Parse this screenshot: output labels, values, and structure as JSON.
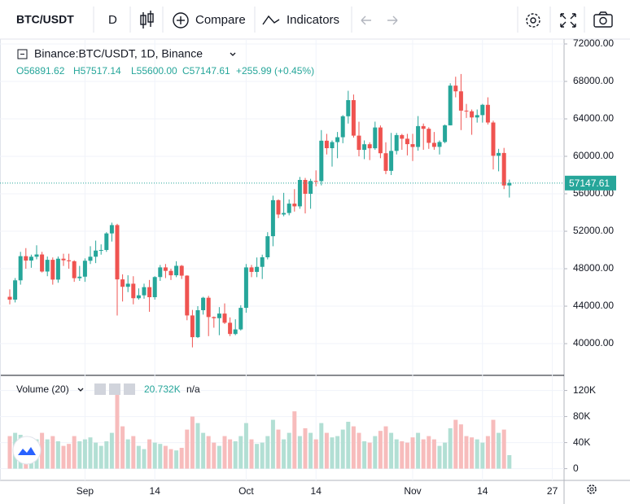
{
  "toolbar": {
    "symbol": "BTC/USDT",
    "interval": "D",
    "compare": "Compare",
    "indicators": "Indicators"
  },
  "legend": {
    "title": "Binance:BTC/USDT, 1D, Binance",
    "values": [
      "O56891.62",
      "H57517.14",
      "L55600.00",
      "C57147.61",
      "+255.99 (+0.45%)"
    ]
  },
  "volume_legend": {
    "title": "Volume (20)",
    "value": "20.732K",
    "extra": "n/a"
  },
  "chart_data": [
    {
      "type": "candlestick",
      "categories": [
        null,
        null,
        null,
        null,
        null,
        null,
        null,
        null,
        null,
        null,
        null,
        null,
        null,
        null,
        "Sep",
        null,
        null,
        null,
        null,
        null,
        null,
        null,
        null,
        null,
        null,
        null,
        null,
        "14",
        null,
        null,
        null,
        null,
        null,
        null,
        null,
        null,
        null,
        null,
        null,
        null,
        null,
        null,
        null,
        null,
        "Oct",
        null,
        null,
        null,
        null,
        null,
        null,
        null,
        null,
        null,
        null,
        null,
        null,
        "14",
        null,
        null,
        null,
        null,
        null,
        null,
        null,
        null,
        null,
        null,
        null,
        null,
        null,
        null,
        null,
        null,
        null,
        "Nov",
        null,
        null,
        null,
        null,
        null,
        null,
        null,
        null,
        null,
        null,
        null,
        null,
        "14",
        null,
        null,
        null,
        null,
        null,
        null,
        null,
        null,
        null,
        null,
        null,
        null,
        "27",
        null,
        null
      ],
      "open": [
        45000,
        44700,
        46760,
        49340,
        48870,
        49280,
        49520,
        47700,
        48950,
        46840,
        49070,
        48900,
        48800,
        46990,
        47150,
        48850,
        49280,
        49940,
        50000,
        51770,
        52660,
        46860,
        46070,
        46400,
        44850,
        45160,
        46030,
        44960,
        47110,
        48140,
        47770,
        47300,
        48310,
        47260,
        43010,
        40690,
        43570,
        44900,
        42840,
        42720,
        43210,
        42230,
        41030,
        41520,
        43820,
        48140,
        47660,
        48200,
        49220,
        51470,
        55320,
        53790,
        53950,
        54950,
        54660,
        57480,
        56000,
        57370,
        57350,
        61670,
        60870,
        61520,
        62040,
        64280,
        66000,
        62210,
        60690,
        61290,
        60860,
        63080,
        60330,
        58450,
        60580,
        62270,
        61880,
        61300,
        61000,
        63230,
        62940,
        61440,
        61010,
        61530,
        63310,
        67550,
        66940,
        64880,
        64810,
        64150,
        64400,
        65500,
        63610,
        60060,
        60360,
        56891.62,
        null,
        null,
        null,
        null,
        null,
        null,
        null,
        null,
        null,
        null
      ],
      "high": [
        45800,
        47000,
        49800,
        50200,
        49500,
        50500,
        49800,
        49300,
        49200,
        49300,
        49600,
        49600,
        48900,
        48300,
        49100,
        50400,
        51000,
        50600,
        51900,
        52920,
        52800,
        47400,
        47300,
        47200,
        45900,
        46400,
        46800,
        47200,
        48400,
        48500,
        48000,
        48800,
        48400,
        47300,
        43600,
        44000,
        45000,
        45100,
        42900,
        43900,
        44300,
        42800,
        42600,
        44100,
        48500,
        48400,
        49200,
        49500,
        51900,
        55800,
        55400,
        56100,
        55400,
        56500,
        57800,
        57700,
        57600,
        58500,
        62800,
        62400,
        61700,
        62600,
        64400,
        67000,
        66600,
        63700,
        61700,
        61500,
        63700,
        63300,
        61500,
        62500,
        62500,
        62400,
        62400,
        62400,
        64300,
        63500,
        63100,
        62600,
        61700,
        63400,
        67800,
        68500,
        68790,
        65600,
        65000,
        65000,
        65600,
        66300,
        63800,
        60800,
        60900,
        57517.14,
        null,
        null,
        null,
        null,
        null,
        null,
        null,
        null,
        null,
        null
      ],
      "low": [
        44200,
        44400,
        46300,
        48000,
        48100,
        49000,
        47600,
        47200,
        46300,
        46500,
        48300,
        48000,
        46600,
        46700,
        46600,
        48500,
        48600,
        49500,
        49800,
        50900,
        43000,
        44500,
        45500,
        44200,
        44700,
        44800,
        43400,
        44700,
        46700,
        47000,
        46800,
        47100,
        46900,
        42500,
        39600,
        40600,
        43100,
        40800,
        41700,
        40900,
        42100,
        40800,
        40900,
        41400,
        43300,
        47100,
        47100,
        46900,
        49000,
        50400,
        53400,
        53600,
        53700,
        54100,
        54400,
        53900,
        54400,
        56800,
        56900,
        60200,
        58900,
        59800,
        61400,
        63500,
        62000,
        60000,
        59700,
        59600,
        60700,
        59800,
        58100,
        58000,
        60200,
        60700,
        60100,
        59500,
        60600,
        60700,
        60800,
        60700,
        60200,
        61400,
        63300,
        66300,
        62800,
        64100,
        62300,
        63600,
        63600,
        63400,
        58600,
        58400,
        56500,
        55600,
        null,
        null,
        null,
        null,
        null,
        null,
        null,
        null,
        null,
        null
      ],
      "close": [
        44700,
        46760,
        49340,
        48870,
        49280,
        49520,
        47700,
        48950,
        46840,
        49070,
        48900,
        48800,
        46990,
        47150,
        48850,
        49280,
        49940,
        50000,
        51770,
        52660,
        46860,
        46070,
        46400,
        44850,
        45160,
        46030,
        44960,
        47110,
        48140,
        47770,
        47300,
        48310,
        47260,
        43010,
        40690,
        43570,
        44900,
        42840,
        42720,
        43210,
        42230,
        41030,
        41520,
        43820,
        48140,
        47660,
        48200,
        49220,
        51470,
        55320,
        53790,
        53950,
        54950,
        54660,
        57480,
        56000,
        57370,
        57350,
        61670,
        60870,
        61520,
        62040,
        64280,
        66000,
        62210,
        60690,
        61290,
        60860,
        63080,
        60330,
        58450,
        60580,
        62270,
        61880,
        61300,
        61000,
        63230,
        62940,
        61440,
        61010,
        61530,
        63310,
        67550,
        66940,
        64880,
        64810,
        64150,
        64400,
        65500,
        63610,
        60060,
        60360,
        56890,
        57147.61,
        null,
        null,
        null,
        null,
        null,
        null,
        null,
        null,
        null,
        null
      ],
      "ylim": [
        36700,
        72520
      ],
      "yticks": [
        {
          "value": 40000,
          "label": "40000.00"
        },
        {
          "value": 44000,
          "label": "44000.00"
        },
        {
          "value": 48000,
          "label": "48000.00"
        },
        {
          "value": 52000,
          "label": "52000.00"
        },
        {
          "value": 56000,
          "label": "56000.00"
        },
        {
          "value": 60000,
          "label": "60000.00"
        },
        {
          "value": 64000,
          "label": "64000.00"
        },
        {
          "value": 68000,
          "label": "68000.00"
        },
        {
          "value": 72000,
          "label": "72000.00"
        }
      ],
      "up_color": "#26a69a",
      "down_color": "#ef5350",
      "grid": true
    },
    {
      "type": "bar",
      "values": [
        50000,
        55000,
        52000,
        48000,
        40000,
        45000,
        55000,
        45000,
        50000,
        42000,
        35000,
        38000,
        50000,
        42000,
        45000,
        48000,
        40000,
        35000,
        42000,
        55000,
        120000,
        65000,
        45000,
        50000,
        35000,
        30000,
        45000,
        40000,
        38000,
        35000,
        30000,
        28000,
        32000,
        60000,
        80000,
        70000,
        55000,
        50000,
        40000,
        35000,
        50000,
        45000,
        42000,
        50000,
        70000,
        45000,
        38000,
        40000,
        50000,
        75000,
        60000,
        45000,
        55000,
        88000,
        50000,
        62000,
        55000,
        45000,
        70000,
        55000,
        48000,
        50000,
        60000,
        72000,
        65000,
        55000,
        42000,
        40000,
        50000,
        58000,
        65000,
        55000,
        45000,
        42000,
        40000,
        48000,
        55000,
        45000,
        50000,
        45000,
        35000,
        40000,
        62000,
        75000,
        68000,
        50000,
        48000,
        45000,
        40000,
        50000,
        75000,
        55000,
        60000,
        20732,
        null,
        null,
        null,
        null,
        null,
        null,
        null,
        null,
        null,
        null
      ],
      "ylim": [
        -18000,
        142000
      ],
      "yticks": [
        {
          "value": 0,
          "label": "0"
        },
        {
          "value": 40000,
          "label": "40K"
        },
        {
          "value": 80000,
          "label": "80K"
        },
        {
          "value": 120000,
          "label": "120K"
        }
      ],
      "up_color": "#b2dfd4",
      "down_color": "#f7bcbc",
      "grid": true
    }
  ]
}
